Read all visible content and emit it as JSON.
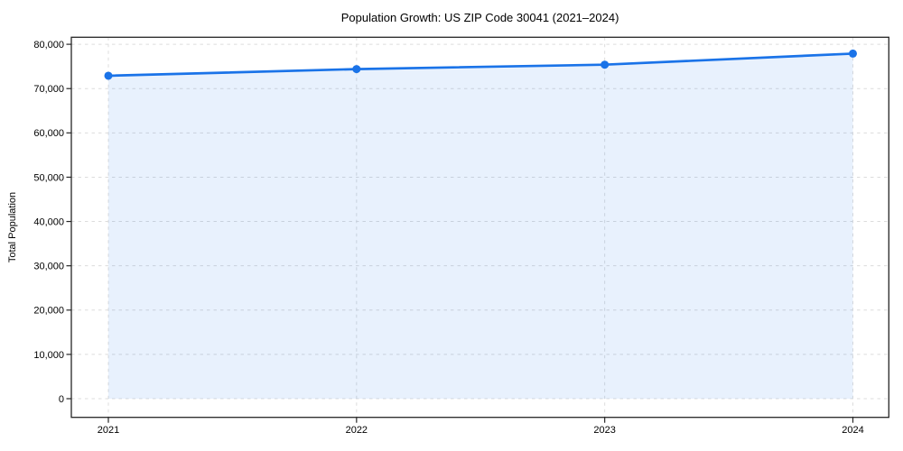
{
  "chart_data": {
    "type": "line",
    "title": "Population Growth: US ZIP Code 30041 (2021–2024)",
    "x": [
      "2021",
      "2022",
      "2023",
      "2024"
    ],
    "series": [
      {
        "name": "Total Population",
        "values": [
          72900,
          74400,
          75400,
          77900
        ]
      }
    ],
    "xlabel": "",
    "ylabel": "Total Population",
    "ylim": [
      0,
      80000
    ],
    "ytick_step": 10000,
    "ytick_labels": [
      "0",
      "10,000",
      "20,000",
      "30,000",
      "40,000",
      "50,000",
      "60,000",
      "70,000",
      "80,000"
    ],
    "grid": true,
    "legend": "none",
    "area_fill": true,
    "style": {
      "line_color": "#1a73e8",
      "marker_color": "#1a73e8",
      "area_fill_color": "rgba(26,115,232,0.10)",
      "gridline_color": "#dcdcdc",
      "axis_color": "#262626",
      "text_color": "#000000",
      "background_color": "#ffffff"
    }
  }
}
